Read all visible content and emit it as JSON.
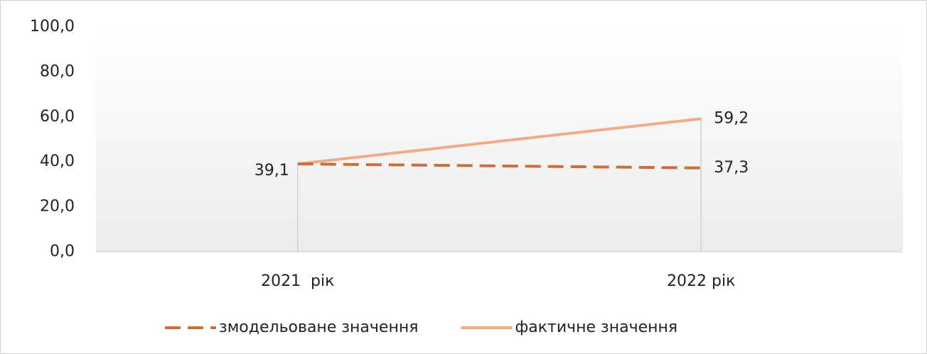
{
  "chart_data": {
    "type": "line",
    "categories": [
      "2021  рік",
      "2022 рік"
    ],
    "series": [
      {
        "name": "змодельоване значення",
        "color": "#c8703a",
        "dashed": true,
        "values": [
          39.1,
          37.3
        ],
        "value_labels": [
          "39,1",
          "37,3"
        ]
      },
      {
        "name": "фактичне значення",
        "color": "#f2aa88",
        "dashed": false,
        "values": [
          39.1,
          59.2
        ],
        "value_labels": [
          null,
          "59,2"
        ]
      }
    ],
    "ylim": [
      0,
      100
    ],
    "yticks": [
      {
        "value": 0,
        "label": "0,0"
      },
      {
        "value": 20,
        "label": "20,0"
      },
      {
        "value": 40,
        "label": "40,0"
      },
      {
        "value": 60,
        "label": "60,0"
      },
      {
        "value": 80,
        "label": "80,0"
      },
      {
        "value": 100,
        "label": "100,0"
      }
    ],
    "drop_lines": true,
    "legend": "bottom"
  }
}
